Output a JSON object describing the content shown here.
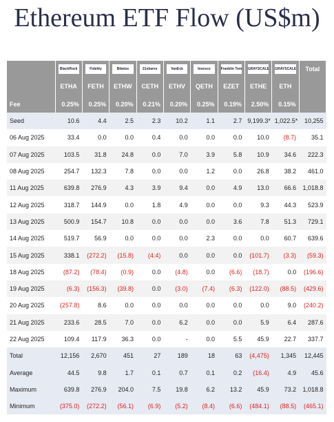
{
  "header": {
    "title": "Ethereum ETF Flow (US$m)"
  },
  "table": {
    "logos": [
      "BlackRock",
      "Fidelity",
      "Bitwise",
      "21shares",
      "VanEck",
      "Invesco",
      "Franklin Templeton",
      "GRAYSCALE",
      "GRAYSCALE"
    ],
    "total_header": "Total",
    "tickers": [
      "ETHA",
      "FETH",
      "ETHW",
      "CETH",
      "ETHV",
      "QETH",
      "EZET",
      "ETHE",
      "ETH"
    ],
    "fee_label": "Fee",
    "fees": [
      "0.25%",
      "0.25%",
      "0.20%",
      "0.21%",
      "0.20%",
      "0.25%",
      "0.19%",
      "2.50%",
      "0.15%"
    ],
    "rows": [
      [
        "Seed",
        "10.6",
        "4.4",
        "2.5",
        "2.3",
        "10.2",
        "1.1",
        "2.7",
        "9,199.3*",
        "1,022.5*",
        "10,255"
      ],
      [
        "06 Aug 2025",
        "33.4",
        "0.0",
        "0.0",
        "0.4",
        "0.0",
        "0.0",
        "0.0",
        "10.0",
        "(8.7)",
        "35.1"
      ],
      [
        "07 Aug 2025",
        "103.5",
        "31.8",
        "24.8",
        "0.0",
        "7.0",
        "3.9",
        "5.8",
        "10.9",
        "34.6",
        "222.3"
      ],
      [
        "08 Aug 2025",
        "254.7",
        "132.3",
        "7.8",
        "0.0",
        "0.0",
        "1.2",
        "0.0",
        "26.8",
        "38.2",
        "461.0"
      ],
      [
        "11 Aug 2025",
        "639.8",
        "276.9",
        "4.3",
        "3.9",
        "9.4",
        "0.0",
        "4.9",
        "13.0",
        "66.6",
        "1,018.8"
      ],
      [
        "12 Aug 2025",
        "318.7",
        "144.9",
        "0.0",
        "1.8",
        "4.9",
        "0.0",
        "0.0",
        "9.3",
        "44.3",
        "523.9"
      ],
      [
        "13 Aug 2025",
        "500.9",
        "154.7",
        "10.8",
        "0.0",
        "0.0",
        "0.0",
        "3.6",
        "7.8",
        "51.3",
        "729.1"
      ],
      [
        "14 Aug 2025",
        "519.7",
        "56.9",
        "0.0",
        "0.0",
        "0.0",
        "2.3",
        "0.0",
        "0.0",
        "60.7",
        "639.6"
      ],
      [
        "15 Aug 2025",
        "338.1",
        "(272.2)",
        "(15.8)",
        "(4.4)",
        "0.0",
        "0.0",
        "0.0",
        "(101.7)",
        "(3.3)",
        "(59.3)"
      ],
      [
        "18 Aug 2025",
        "(87.2)",
        "(78.4)",
        "(0.9)",
        "0.0",
        "(4.8)",
        "0.0",
        "(6.6)",
        "(18.7)",
        "0.0",
        "(196.6)"
      ],
      [
        "19 Aug 2025",
        "(6.3)",
        "(156.3)",
        "(39.8)",
        "0.0",
        "(3.0)",
        "(7.4)",
        "(6.3)",
        "(122.0)",
        "(88.5)",
        "(429.6)"
      ],
      [
        "20 Aug 2025",
        "(257.8)",
        "8.6",
        "0.0",
        "0.0",
        "0.0",
        "0.0",
        "0.0",
        "0.0",
        "9.0",
        "(240.2)"
      ],
      [
        "21 Aug 2025",
        "233.6",
        "28.5",
        "7.0",
        "0.0",
        "6.2",
        "0.0",
        "0.0",
        "5.9",
        "6.4",
        "287.6"
      ],
      [
        "22 Aug 2025",
        "109.4",
        "117.9",
        "36.3",
        "0.0",
        "-",
        "0.0",
        "5.5",
        "45.9",
        "22.7",
        "337.7"
      ],
      [
        "Total",
        "12,156",
        "2,670",
        "451",
        "27",
        "189",
        "18",
        "63",
        "(4,475)",
        "1,345",
        "12,445"
      ],
      [
        "Average",
        "44.5",
        "9.8",
        "1.7",
        "0.1",
        "0.7",
        "0.1",
        "0.2",
        "(16.4)",
        "4.9",
        "45.6"
      ],
      [
        "Maximum",
        "639.8",
        "276.9",
        "204.0",
        "7.5",
        "19.8",
        "6.2",
        "13.2",
        "45.9",
        "73.2",
        "1,018.8"
      ],
      [
        "Minimum",
        "(375.0)",
        "(272.2)",
        "(56.1)",
        "(6.9)",
        "(5.2)",
        "(8.4)",
        "(6.6)",
        "(484.1)",
        "(88.5)",
        "(465.1)"
      ]
    ]
  }
}
